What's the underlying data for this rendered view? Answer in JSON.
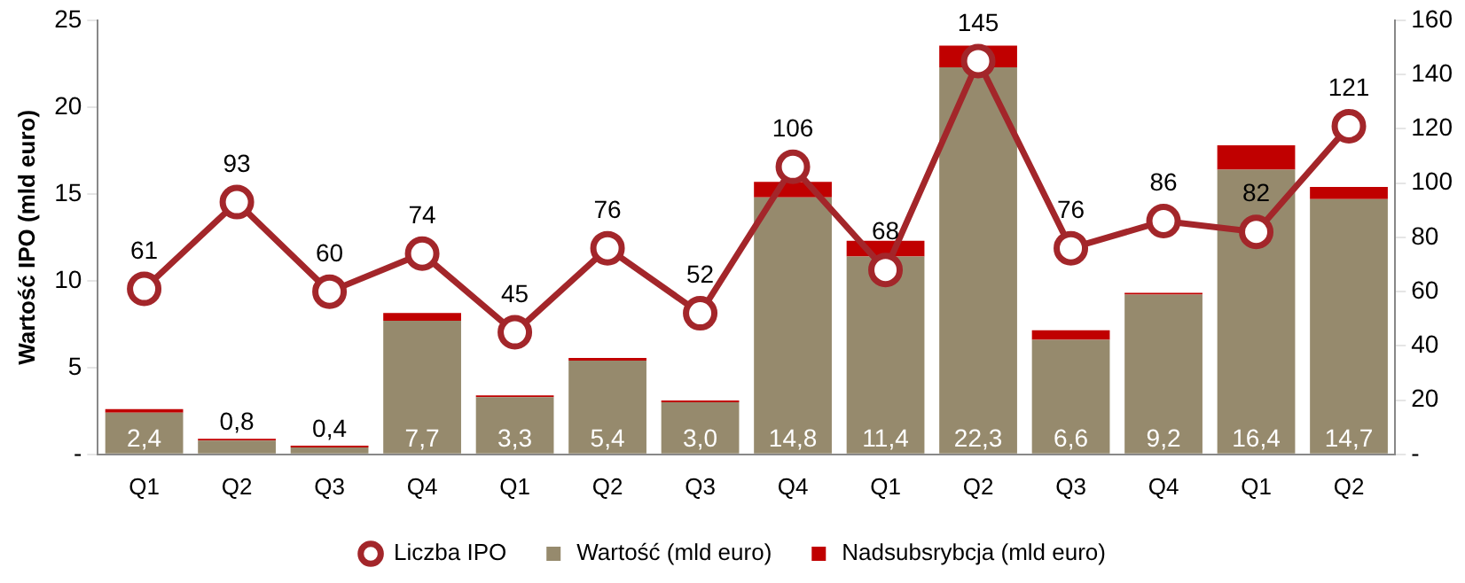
{
  "chart_data": {
    "type": "bar",
    "stacked": true,
    "ylabel": "Wartość IPO (mld euro)",
    "categories": [
      "Q1",
      "Q2",
      "Q3",
      "Q4",
      "Q1",
      "Q2",
      "Q3",
      "Q4",
      "Q1",
      "Q2",
      "Q3",
      "Q4",
      "Q1",
      "Q2"
    ],
    "ylim": [
      0,
      25
    ],
    "yticks": [
      {
        "value": 0,
        "label": "-"
      },
      5,
      10,
      15,
      20,
      25
    ],
    "y2lim": [
      0,
      160
    ],
    "y2ticks": [
      {
        "value": 0,
        "label": "-"
      },
      20,
      40,
      60,
      80,
      100,
      120,
      140,
      160
    ],
    "grid": false,
    "legend": "bottom",
    "series": [
      {
        "name": "Wartość (mld euro)",
        "color": "#968a6d",
        "values": [
          2.4,
          0.8,
          0.4,
          7.7,
          3.3,
          5.4,
          3.0,
          14.8,
          11.4,
          22.3,
          6.6,
          9.2,
          16.4,
          14.7
        ],
        "value_labels": [
          "2,4",
          "0,8",
          "0,4",
          "7,7",
          "3,3",
          "5,4",
          "3,0",
          "14,8",
          "11,4",
          "22,3",
          "6,6",
          "9,2",
          "16,4",
          "14,7"
        ]
      },
      {
        "name": "Nadsubsrybcja (mld euro)",
        "color": "#c00000",
        "values": [
          0.2,
          0.1,
          0.1,
          0.45,
          0.1,
          0.15,
          0.1,
          0.9,
          0.9,
          1.25,
          0.55,
          0.1,
          1.4,
          0.7
        ]
      },
      {
        "name": "Liczba IPO",
        "type": "line",
        "axis": "y2",
        "marker": "circle",
        "color": "#a3262a",
        "values": [
          61,
          93,
          60,
          74,
          45,
          76,
          52,
          106,
          68,
          145,
          76,
          86,
          82,
          121
        ],
        "value_labels": [
          "61",
          "93",
          "60",
          "74",
          "45",
          "76",
          "52",
          "106",
          "68",
          "145",
          "76",
          "86",
          "82",
          "121"
        ]
      }
    ]
  }
}
